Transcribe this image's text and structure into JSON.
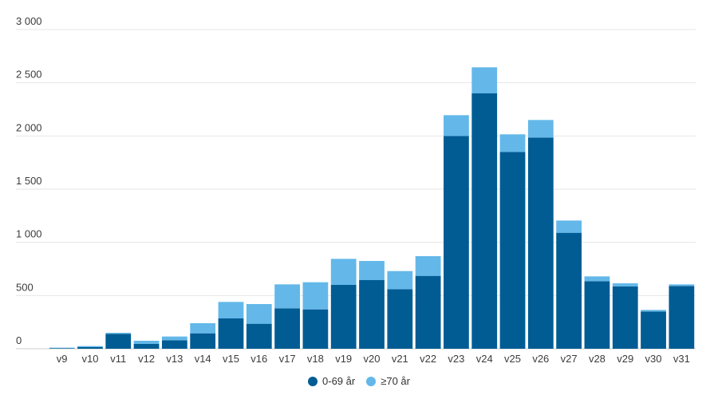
{
  "chart_data": {
    "type": "bar",
    "stacked": true,
    "categories": [
      "v9",
      "v10",
      "v11",
      "v12",
      "v13",
      "v14",
      "v15",
      "v16",
      "v17",
      "v18",
      "v19",
      "v20",
      "v21",
      "v22",
      "v23",
      "v24",
      "v25",
      "v26",
      "v27",
      "v28",
      "v29",
      "v30",
      "v31"
    ],
    "series": [
      {
        "name": "0-69 år",
        "color": "#015c94",
        "values": [
          5,
          15,
          140,
          45,
          80,
          145,
          285,
          235,
          380,
          370,
          600,
          645,
          560,
          685,
          2000,
          2400,
          1850,
          1985,
          1090,
          635,
          585,
          350,
          590
        ]
      },
      {
        "name": "≥70 år",
        "color": "#63b8e9",
        "values": [
          5,
          10,
          10,
          30,
          35,
          95,
          155,
          185,
          225,
          255,
          245,
          180,
          170,
          185,
          195,
          245,
          165,
          165,
          115,
          45,
          30,
          15,
          15
        ]
      }
    ],
    "yticks": [
      "0",
      "500",
      "1 000",
      "1 500",
      "2 000",
      "2 500",
      "3 000"
    ],
    "ylim": [
      0,
      3000
    ],
    "grid": true,
    "legend_position": "bottom-center",
    "title": "",
    "xlabel": "",
    "ylabel": ""
  },
  "legend": {
    "items": [
      {
        "label": "0-69 år",
        "color": "#015c94"
      },
      {
        "label": "≥70 år",
        "color": "#63b8e9"
      }
    ]
  }
}
